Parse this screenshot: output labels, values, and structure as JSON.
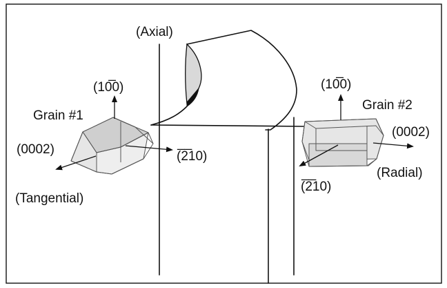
{
  "labels": {
    "axial": "(Axial)",
    "tangential": "(Tangential)",
    "radial": "(Radial)",
    "grain1": "Grain #1",
    "grain2": "Grain #2",
    "g1_prism": "(10̅0)",
    "g1_basal": "(0002)",
    "g1_a": "(̅2̅10)",
    "g2_prism": "(10̅0)",
    "g2_basal": "(0002)",
    "g2_a": "(̅2̅10)"
  },
  "colors": {
    "line": "#111111",
    "crystal_face": "#e6e6e6",
    "crystal_face_dark": "#cfcfcf",
    "crystal_edge": "#555555",
    "blade_shade": "#d9d9d9"
  }
}
